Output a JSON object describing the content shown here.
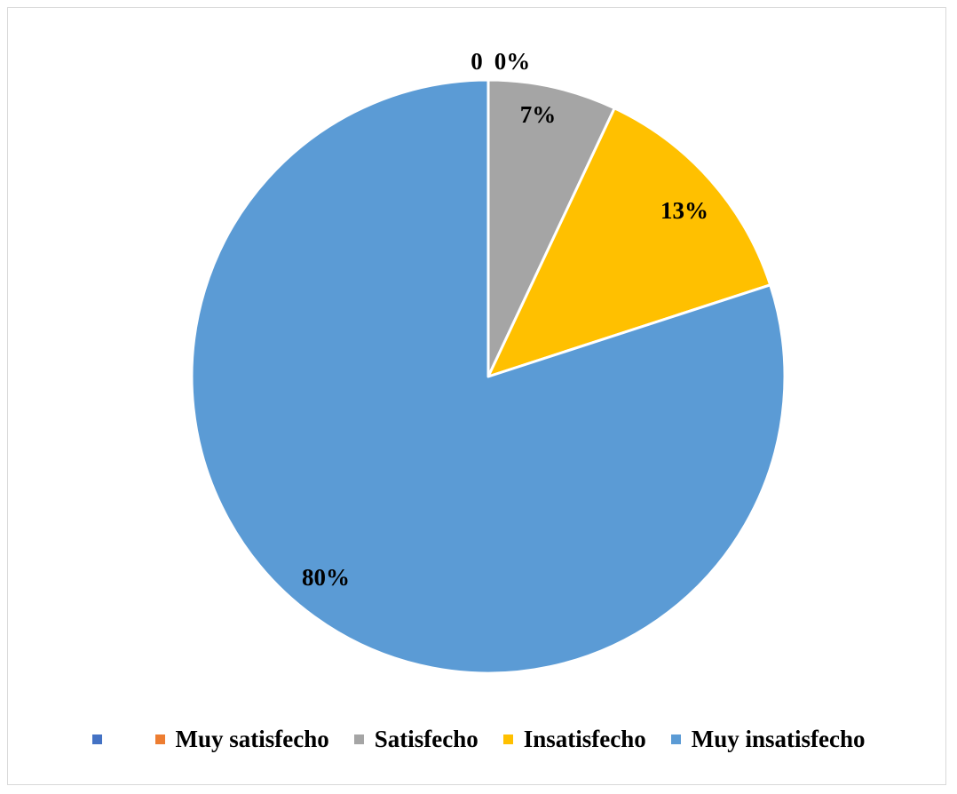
{
  "chart_data": {
    "type": "pie",
    "title": "",
    "categories": [
      "",
      "Muy satisfecho",
      "Satisfecho",
      "Insatisfecho",
      "Muy insatisfecho"
    ],
    "values": [
      0,
      0,
      7,
      13,
      80
    ],
    "data_labels": [
      "0",
      "0%",
      "7%",
      "13%",
      "80%"
    ],
    "colors": [
      "#4472C4",
      "#ED7D31",
      "#A5A5A5",
      "#FFC000",
      "#5B9BD5"
    ],
    "start_angle_deg": 0,
    "direction": "clockwise",
    "legend_position": "bottom"
  }
}
